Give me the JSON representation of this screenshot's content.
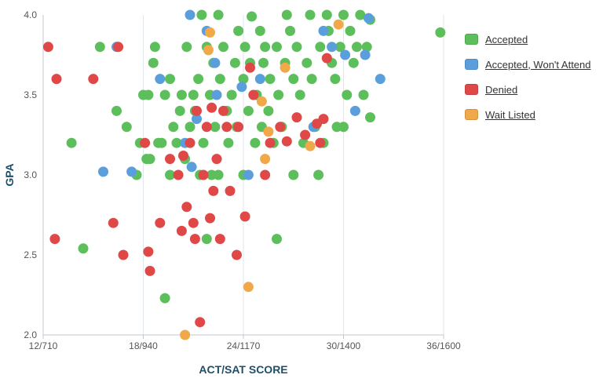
{
  "chart_data": {
    "type": "scatter",
    "xlabel": "ACT/SAT SCORE",
    "ylabel": "GPA",
    "xlim": [
      12,
      36
    ],
    "ylim": [
      2.0,
      4.0
    ],
    "x_ticks": [
      {
        "value": 12,
        "label": "12/710"
      },
      {
        "value": 18,
        "label": "18/940"
      },
      {
        "value": 24,
        "label": "24/1170"
      },
      {
        "value": 30,
        "label": "30/1400"
      },
      {
        "value": 36,
        "label": "36/1600"
      }
    ],
    "y_ticks": [
      {
        "value": 2.0,
        "label": "2.0"
      },
      {
        "value": 2.5,
        "label": "2.5"
      },
      {
        "value": 3.0,
        "label": "3.0"
      },
      {
        "value": 3.5,
        "label": "3.5"
      },
      {
        "value": 4.0,
        "label": "4.0"
      }
    ],
    "grid": "vertical",
    "legend_position": "right",
    "series": [
      {
        "name": "Accepted",
        "color": "#5cbf5c",
        "points": [
          [
            13.7,
            3.2
          ],
          [
            14.4,
            2.54
          ],
          [
            15.4,
            3.8
          ],
          [
            16.4,
            3.4
          ],
          [
            17.0,
            3.3
          ],
          [
            17.6,
            3.0
          ],
          [
            17.8,
            3.2
          ],
          [
            18.0,
            3.5
          ],
          [
            18.2,
            3.1
          ],
          [
            18.3,
            3.5
          ],
          [
            18.4,
            3.1
          ],
          [
            18.6,
            3.7
          ],
          [
            18.7,
            3.8
          ],
          [
            18.9,
            3.2
          ],
          [
            19.1,
            3.2
          ],
          [
            19.3,
            2.23
          ],
          [
            19.3,
            3.5
          ],
          [
            19.6,
            3.6
          ],
          [
            19.8,
            3.3
          ],
          [
            20.0,
            3.2
          ],
          [
            20.2,
            3.4
          ],
          [
            20.3,
            3.5
          ],
          [
            20.5,
            3.1
          ],
          [
            20.6,
            3.8
          ],
          [
            20.8,
            3.3
          ],
          [
            21.0,
            3.5
          ],
          [
            21.1,
            3.4
          ],
          [
            21.3,
            3.6
          ],
          [
            21.4,
            3.0
          ],
          [
            21.5,
            4.0
          ],
          [
            21.6,
            3.2
          ],
          [
            21.8,
            3.8
          ],
          [
            21.8,
            2.6
          ],
          [
            22.0,
            3.5
          ],
          [
            22.1,
            3.0
          ],
          [
            22.2,
            3.7
          ],
          [
            22.3,
            3.3
          ],
          [
            22.5,
            4.0
          ],
          [
            22.5,
            3.0
          ],
          [
            22.6,
            3.6
          ],
          [
            22.8,
            3.8
          ],
          [
            23.0,
            3.4
          ],
          [
            23.1,
            3.2
          ],
          [
            23.3,
            3.5
          ],
          [
            23.5,
            3.7
          ],
          [
            23.6,
            3.3
          ],
          [
            23.7,
            3.9
          ],
          [
            24.0,
            3.0
          ],
          [
            24.0,
            3.6
          ],
          [
            24.1,
            3.8
          ],
          [
            24.3,
            3.4
          ],
          [
            24.4,
            3.7
          ],
          [
            24.5,
            3.99
          ],
          [
            24.7,
            3.2
          ],
          [
            24.8,
            3.5
          ],
          [
            25.0,
            3.9
          ],
          [
            25.1,
            3.3
          ],
          [
            25.2,
            3.7
          ],
          [
            25.3,
            3.8
          ],
          [
            25.5,
            3.4
          ],
          [
            25.6,
            3.6
          ],
          [
            25.8,
            3.2
          ],
          [
            26.0,
            3.8
          ],
          [
            26.0,
            2.6
          ],
          [
            26.1,
            3.5
          ],
          [
            26.3,
            3.3
          ],
          [
            26.5,
            3.7
          ],
          [
            26.6,
            4.0
          ],
          [
            26.8,
            3.9
          ],
          [
            27.0,
            3.6
          ],
          [
            27.0,
            3.0
          ],
          [
            27.2,
            3.8
          ],
          [
            27.4,
            3.5
          ],
          [
            27.6,
            3.2
          ],
          [
            27.8,
            3.7
          ],
          [
            28.0,
            4.0
          ],
          [
            28.1,
            3.6
          ],
          [
            28.3,
            3.3
          ],
          [
            28.5,
            3.0
          ],
          [
            28.6,
            3.8
          ],
          [
            28.8,
            3.2
          ],
          [
            29.0,
            4.0
          ],
          [
            29.1,
            3.9
          ],
          [
            29.3,
            3.7
          ],
          [
            29.5,
            3.6
          ],
          [
            29.6,
            3.3
          ],
          [
            29.8,
            3.8
          ],
          [
            30.0,
            4.0
          ],
          [
            30.0,
            3.3
          ],
          [
            30.2,
            3.5
          ],
          [
            30.4,
            3.9
          ],
          [
            30.6,
            3.7
          ],
          [
            30.8,
            3.8
          ],
          [
            31.0,
            4.0
          ],
          [
            31.2,
            3.5
          ],
          [
            31.4,
            3.8
          ],
          [
            31.6,
            3.36
          ],
          [
            31.6,
            3.97
          ],
          [
            35.8,
            3.89
          ],
          [
            19.6,
            3.0
          ]
        ]
      },
      {
        "name": "Accepted, Won't Attend",
        "color": "#5a9fdc",
        "points": [
          [
            15.6,
            3.02
          ],
          [
            16.4,
            3.8
          ],
          [
            17.3,
            3.02
          ],
          [
            19.0,
            3.6
          ],
          [
            20.5,
            3.2
          ],
          [
            20.9,
            3.05
          ],
          [
            21.2,
            3.35
          ],
          [
            21.8,
            3.9
          ],
          [
            22.3,
            3.7
          ],
          [
            22.4,
            3.5
          ],
          [
            23.9,
            3.55
          ],
          [
            24.3,
            3.0
          ],
          [
            25.0,
            3.6
          ],
          [
            28.2,
            3.3
          ],
          [
            28.8,
            3.9
          ],
          [
            29.3,
            3.8
          ],
          [
            30.1,
            3.75
          ],
          [
            30.7,
            3.4
          ],
          [
            31.3,
            3.75
          ],
          [
            31.5,
            3.98
          ],
          [
            32.2,
            3.6
          ],
          [
            20.8,
            4.0
          ]
        ]
      },
      {
        "name": "Denied",
        "color": "#e04848",
        "points": [
          [
            12.3,
            3.8
          ],
          [
            12.7,
            2.6
          ],
          [
            12.8,
            3.6
          ],
          [
            15.0,
            3.6
          ],
          [
            16.2,
            2.7
          ],
          [
            16.5,
            3.8
          ],
          [
            16.8,
            2.5
          ],
          [
            18.1,
            3.2
          ],
          [
            18.3,
            2.52
          ],
          [
            18.4,
            2.4
          ],
          [
            19.0,
            2.7
          ],
          [
            19.6,
            3.1
          ],
          [
            20.1,
            3.0
          ],
          [
            20.3,
            2.65
          ],
          [
            20.6,
            2.8
          ],
          [
            20.8,
            3.2
          ],
          [
            21.0,
            2.7
          ],
          [
            21.2,
            3.4
          ],
          [
            21.4,
            2.08
          ],
          [
            21.6,
            3.0
          ],
          [
            21.8,
            3.3
          ],
          [
            22.0,
            2.73
          ],
          [
            22.2,
            2.9
          ],
          [
            22.4,
            3.1
          ],
          [
            22.6,
            2.6
          ],
          [
            22.8,
            3.4
          ],
          [
            23.0,
            3.3
          ],
          [
            23.2,
            2.9
          ],
          [
            23.6,
            2.5
          ],
          [
            23.7,
            3.3
          ],
          [
            24.1,
            2.74
          ],
          [
            24.4,
            3.67
          ],
          [
            24.6,
            3.5
          ],
          [
            25.3,
            3.0
          ],
          [
            25.6,
            3.2
          ],
          [
            26.2,
            3.3
          ],
          [
            26.6,
            3.21
          ],
          [
            27.2,
            3.36
          ],
          [
            27.7,
            3.25
          ],
          [
            28.4,
            3.32
          ],
          [
            28.6,
            3.2
          ],
          [
            28.8,
            3.35
          ],
          [
            29.0,
            3.73
          ],
          [
            20.4,
            3.12
          ],
          [
            21.1,
            2.6
          ],
          [
            22.1,
            3.42
          ]
        ]
      },
      {
        "name": "Wait Listed",
        "color": "#f0a848",
        "points": [
          [
            20.5,
            2.0
          ],
          [
            21.9,
            3.78
          ],
          [
            22.0,
            3.89
          ],
          [
            24.3,
            2.3
          ],
          [
            25.1,
            3.46
          ],
          [
            25.3,
            3.1
          ],
          [
            25.5,
            3.27
          ],
          [
            26.5,
            3.67
          ],
          [
            28.0,
            3.18
          ],
          [
            29.7,
            3.94
          ]
        ]
      }
    ]
  }
}
